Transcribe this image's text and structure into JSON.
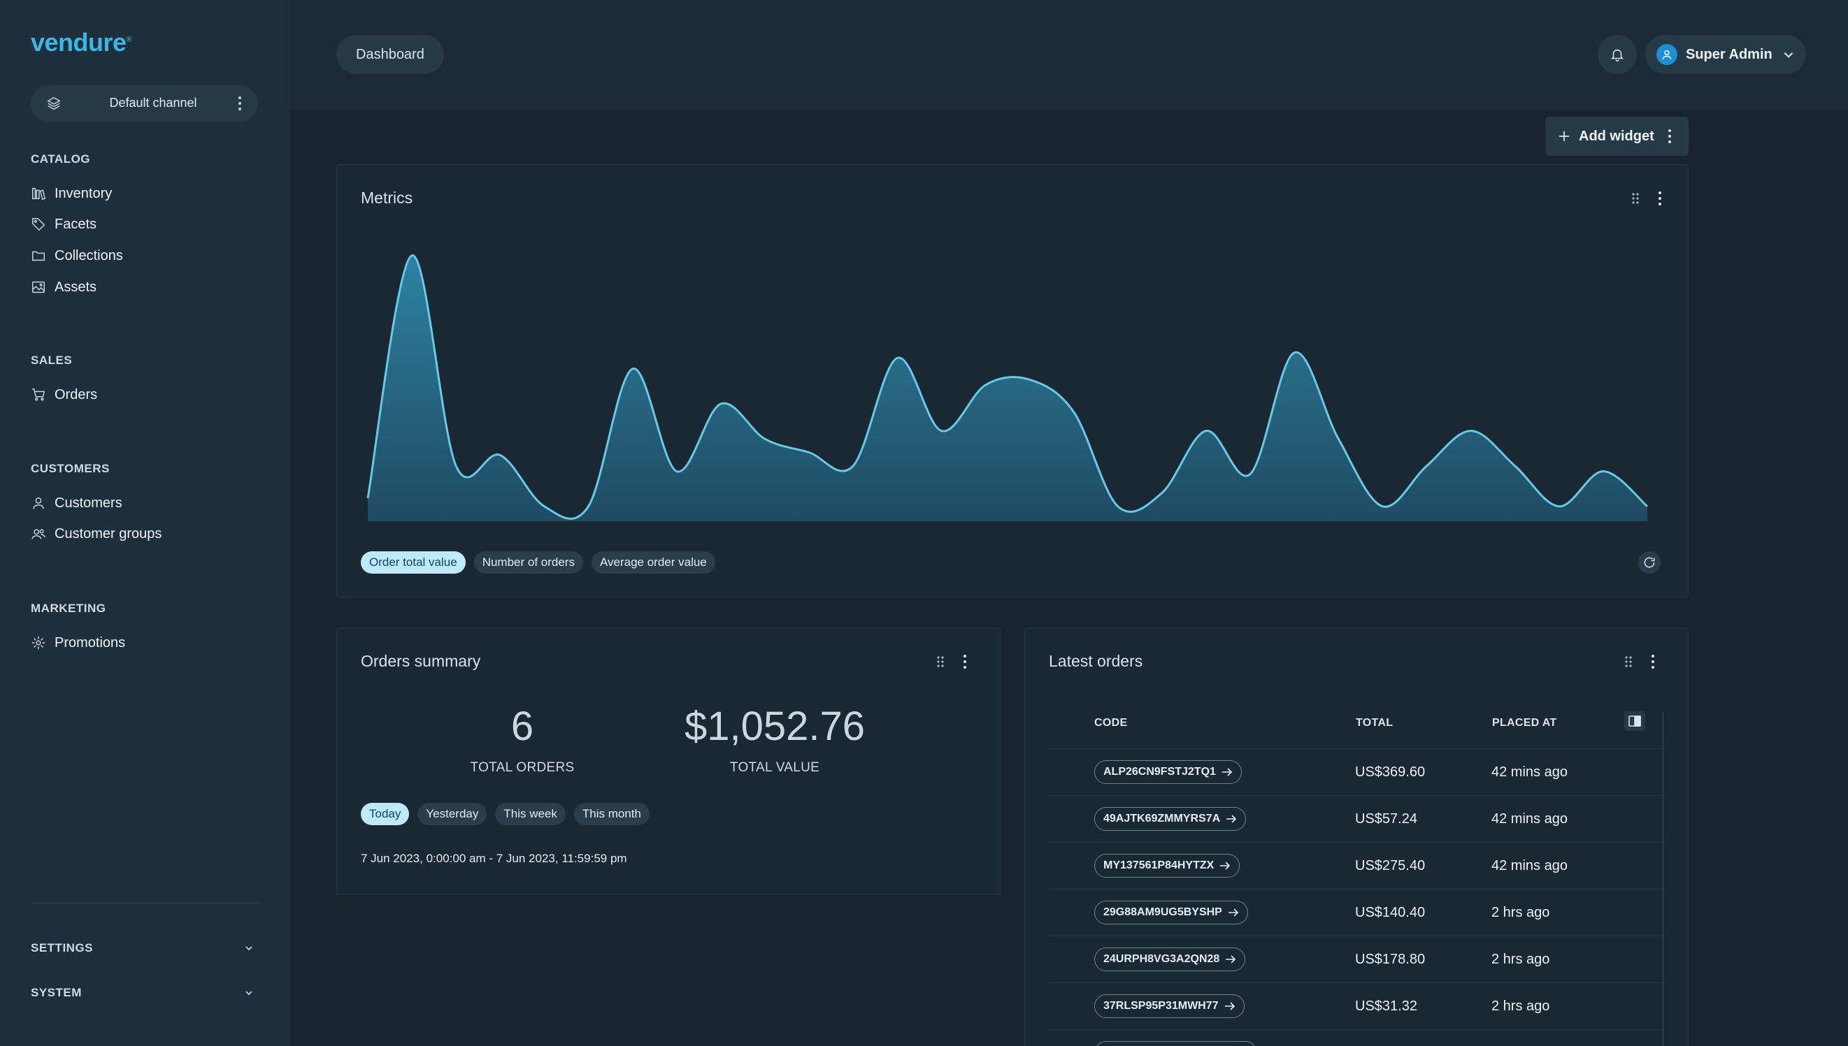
{
  "brand": {
    "name": "vendure"
  },
  "channel": {
    "label": "Default channel"
  },
  "sidebar": {
    "sections": [
      {
        "title": "CATALOG",
        "items": [
          {
            "label": "Inventory",
            "icon": "inventory-icon"
          },
          {
            "label": "Facets",
            "icon": "tag-icon"
          },
          {
            "label": "Collections",
            "icon": "folder-icon"
          },
          {
            "label": "Assets",
            "icon": "image-icon"
          }
        ]
      },
      {
        "title": "SALES",
        "items": [
          {
            "label": "Orders",
            "icon": "cart-icon"
          }
        ]
      },
      {
        "title": "CUSTOMERS",
        "items": [
          {
            "label": "Customers",
            "icon": "user-icon"
          },
          {
            "label": "Customer groups",
            "icon": "users-icon"
          }
        ]
      },
      {
        "title": "MARKETING",
        "items": [
          {
            "label": "Promotions",
            "icon": "promotions-icon"
          }
        ]
      }
    ],
    "collapsibles": [
      {
        "label": "SETTINGS"
      },
      {
        "label": "SYSTEM"
      }
    ]
  },
  "header": {
    "breadcrumb": "Dashboard",
    "user": {
      "name": "Super Admin"
    }
  },
  "toolbar": {
    "add_widget_label": "Add widget"
  },
  "metrics": {
    "title": "Metrics",
    "tabs": [
      {
        "label": "Order total value",
        "active": true
      },
      {
        "label": "Number of orders",
        "active": false
      },
      {
        "label": "Average order value",
        "active": false
      }
    ]
  },
  "chart_data": {
    "type": "area",
    "title": "",
    "xlabel": "",
    "ylabel": "",
    "grid": false,
    "values": [
      0.08,
      0.98,
      0.2,
      0.24,
      0.05,
      0.05,
      0.56,
      0.18,
      0.43,
      0.3,
      0.25,
      0.2,
      0.6,
      0.33,
      0.5,
      0.52,
      0.4,
      0.05,
      0.1,
      0.33,
      0.17,
      0.62,
      0.3,
      0.05,
      0.2,
      0.33,
      0.2,
      0.05,
      0.18,
      0.05
    ],
    "color": "#67c8e8"
  },
  "orders_summary": {
    "title": "Orders summary",
    "total_orders": "6",
    "total_orders_label": "TOTAL ORDERS",
    "total_value": "$1,052.76",
    "total_value_label": "TOTAL VALUE",
    "ranges": [
      {
        "label": "Today",
        "active": true
      },
      {
        "label": "Yesterday",
        "active": false
      },
      {
        "label": "This week",
        "active": false
      },
      {
        "label": "This month",
        "active": false
      }
    ],
    "date_range": "7 Jun 2023, 0:00:00 am - 7 Jun 2023, 11:59:59 pm"
  },
  "latest_orders": {
    "title": "Latest orders",
    "columns": {
      "code": "CODE",
      "total": "TOTAL",
      "placed_at": "PLACED AT"
    },
    "rows": [
      {
        "code": "ALP26CN9FSTJ2TQ1",
        "total": "US$369.60",
        "placed": "42 mins ago"
      },
      {
        "code": "49AJTK69ZMMYRS7A",
        "total": "US$57.24",
        "placed": "42 mins ago"
      },
      {
        "code": "MY137561P84HYTZX",
        "total": "US$275.40",
        "placed": "42 mins ago"
      },
      {
        "code": "29G88AM9UG5BYSHP",
        "total": "US$140.40",
        "placed": "2 hrs ago"
      },
      {
        "code": "24URPH8VG3A2QN28",
        "total": "US$178.80",
        "placed": "2 hrs ago"
      },
      {
        "code": "37RLSP95P31MWH77",
        "total": "US$31.32",
        "placed": "2 hrs ago"
      }
    ]
  },
  "colors": {
    "accent": "#3ab6e7",
    "active_chip": "#bfe9f9",
    "background": "#172430",
    "sidebar": "#1e2f3b"
  }
}
